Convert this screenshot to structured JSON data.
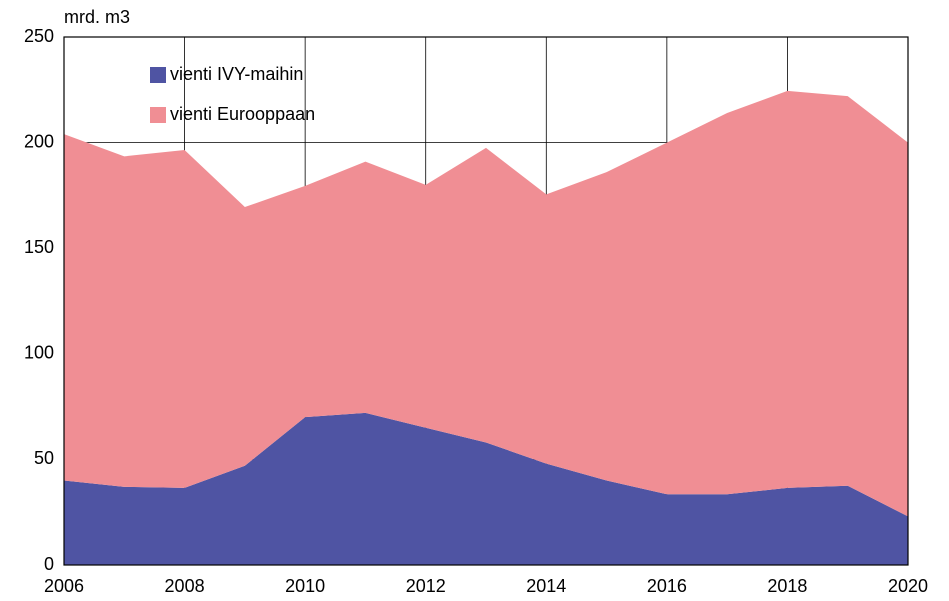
{
  "chart_data": {
    "type": "stacked_area",
    "y_axis_label": "mrd. m3",
    "x": [
      2006,
      2007,
      2008,
      2009,
      2010,
      2011,
      2012,
      2013,
      2014,
      2015,
      2016,
      2017,
      2018,
      2019,
      2020
    ],
    "series": [
      {
        "name": "vienti IVY-maihin",
        "color": "#4f54a3",
        "values": [
          40,
          37,
          36.5,
          47,
          70,
          72,
          65,
          58,
          48,
          40,
          33.5,
          33.5,
          36.5,
          37.5,
          23
        ]
      },
      {
        "name": "vienti Eurooppaan",
        "color": "#f08e94",
        "values": [
          164,
          156.5,
          160,
          122.5,
          109.5,
          119,
          115,
          139.5,
          127.5,
          146,
          166.5,
          180.5,
          188,
          184.5,
          177
        ]
      }
    ],
    "xlim": [
      2006,
      2020
    ],
    "xticks": [
      2006,
      2008,
      2010,
      2012,
      2014,
      2016,
      2018,
      2020
    ],
    "ylim": [
      0,
      250
    ],
    "yticks": [
      0,
      50,
      100,
      150,
      200,
      250
    ],
    "grid": true,
    "legend": "upper left"
  }
}
